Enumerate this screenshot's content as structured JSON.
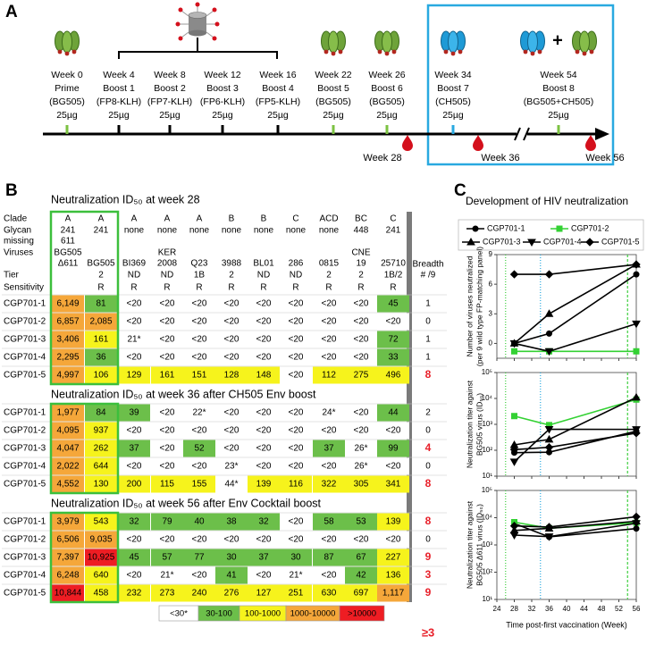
{
  "panel_a": {
    "label": "A",
    "schedule": [
      {
        "week": "Week 0",
        "name": "Prime",
        "immunogen": "(BG505)",
        "dose": "25µg",
        "color": "#7cc242"
      },
      {
        "week": "Week 4",
        "name": "Boost 1",
        "immunogen": "(FP8-KLH)",
        "dose": "25µg",
        "color": "#000000"
      },
      {
        "week": "Week 8",
        "name": "Boost 2",
        "immunogen": "(FP7-KLH)",
        "dose": "25µg",
        "color": "#000000"
      },
      {
        "week": "Week 12",
        "name": "Boost 3",
        "immunogen": "(FP6-KLH)",
        "dose": "25µg",
        "color": "#000000"
      },
      {
        "week": "Week 16",
        "name": "Boost 4",
        "immunogen": "(FP5-KLH)",
        "dose": "25µg",
        "color": "#000000"
      },
      {
        "week": "Week 22",
        "name": "Boost 5",
        "immunogen": "(BG505)",
        "dose": "25µg",
        "color": "#7cc242"
      },
      {
        "week": "Week 26",
        "name": "Boost 6",
        "immunogen": "(BG505)",
        "dose": "25µg",
        "color": "#7cc242"
      },
      {
        "week": "Week 34",
        "name": "Boost 7",
        "immunogen": "(CH505)",
        "dose": "25µg",
        "color": "#29a9e0"
      },
      {
        "week": "Week 54",
        "name": "Boost 8",
        "immunogen": "(BG505+CH505)",
        "dose": "25µg",
        "color": "#7cc242"
      }
    ],
    "bleeds": [
      "Week 28",
      "Week 36",
      "Week 56"
    ],
    "combo_sign": "+"
  },
  "panel_b": {
    "label": "B",
    "row_labels": [
      [
        "Clade"
      ],
      [
        "Glycan",
        "missing"
      ],
      [
        "Viruses"
      ],
      [
        "Tier"
      ],
      [
        "Sensitivity"
      ]
    ],
    "breadth_header": [
      "Breadth",
      "# /9"
    ],
    "columns": [
      {
        "clade": "A",
        "glycan": [
          "241",
          "611"
        ],
        "virus": [
          "BG505",
          "Δ611"
        ],
        "tier": null,
        "sensitivity": null
      },
      {
        "clade": "A",
        "glycan": [
          "241"
        ],
        "virus": [
          "BG505"
        ],
        "tier": "2",
        "sensitivity": "R"
      },
      {
        "clade": "A",
        "glycan": [
          "none"
        ],
        "virus": [
          "BI369"
        ],
        "tier": "ND",
        "sensitivity": "R"
      },
      {
        "clade": "A",
        "glycan": [
          "none"
        ],
        "virus": [
          "KER",
          "2008"
        ],
        "tier": "ND",
        "sensitivity": "R"
      },
      {
        "clade": "A",
        "glycan": [
          "none"
        ],
        "virus": [
          "Q23"
        ],
        "tier": "1B",
        "sensitivity": "R"
      },
      {
        "clade": "B",
        "glycan": [
          "none"
        ],
        "virus": [
          "3988"
        ],
        "tier": "2",
        "sensitivity": "R"
      },
      {
        "clade": "B",
        "glycan": [
          "none"
        ],
        "virus": [
          "BL01"
        ],
        "tier": "ND",
        "sensitivity": "R"
      },
      {
        "clade": "C",
        "glycan": [
          "none"
        ],
        "virus": [
          "286"
        ],
        "tier": "ND",
        "sensitivity": "R"
      },
      {
        "clade": "ACD",
        "glycan": [
          "none"
        ],
        "virus": [
          "0815"
        ],
        "tier": "2",
        "sensitivity": "R"
      },
      {
        "clade": "BC",
        "glycan": [
          "448"
        ],
        "virus": [
          "CNE",
          "19"
        ],
        "tier": "2",
        "sensitivity": "R"
      },
      {
        "clade": "C",
        "glycan": [
          "241"
        ],
        "virus": [
          "25710"
        ],
        "tier": "1B/2",
        "sensitivity": "R"
      }
    ],
    "tables": [
      {
        "title": "Neutralization ID₅₀ at week 28",
        "rows": [
          {
            "name": "CGP701-1",
            "cells": [
              "6,149",
              "81",
              "<20",
              "<20",
              "<20",
              "<20",
              "<20",
              "<20",
              "<20",
              "<20",
              "45"
            ],
            "breadth": 1
          },
          {
            "name": "CGP701-2",
            "cells": [
              "6,857",
              "2,085",
              "<20",
              "<20",
              "<20",
              "<20",
              "<20",
              "<20",
              "<20",
              "<20",
              "<20"
            ],
            "breadth": 0
          },
          {
            "name": "CGP701-3",
            "cells": [
              "3,406",
              "161",
              "21*",
              "<20",
              "<20",
              "<20",
              "<20",
              "<20",
              "<20",
              "<20",
              "72"
            ],
            "breadth": 1
          },
          {
            "name": "CGP701-4",
            "cells": [
              "2,295",
              "36",
              "<20",
              "<20",
              "<20",
              "<20",
              "<20",
              "<20",
              "<20",
              "<20",
              "33"
            ],
            "breadth": 1
          },
          {
            "name": "CGP701-5",
            "cells": [
              "4,997",
              "106",
              "129",
              "161",
              "151",
              "128",
              "148",
              "<20",
              "112",
              "275",
              "496"
            ],
            "breadth": 8
          }
        ]
      },
      {
        "title": "Neutralization ID₅₀ at week 36 after CH505 Env boost",
        "rows": [
          {
            "name": "CGP701-1",
            "cells": [
              "1,977",
              "84",
              "39",
              "<20",
              "22*",
              "<20",
              "<20",
              "<20",
              "24*",
              "<20",
              "44"
            ],
            "breadth": 2
          },
          {
            "name": "CGP701-2",
            "cells": [
              "4,095",
              "937",
              "<20",
              "<20",
              "<20",
              "<20",
              "<20",
              "<20",
              "<20",
              "<20",
              "<20"
            ],
            "breadth": 0
          },
          {
            "name": "CGP701-3",
            "cells": [
              "4,047",
              "262",
              "37",
              "<20",
              "52",
              "<20",
              "<20",
              "<20",
              "37",
              "26*",
              "99"
            ],
            "breadth": 4
          },
          {
            "name": "CGP701-4",
            "cells": [
              "2,022",
              "644",
              "<20",
              "<20",
              "<20",
              "23*",
              "<20",
              "<20",
              "<20",
              "26*",
              "<20"
            ],
            "breadth": 0
          },
          {
            "name": "CGP701-5",
            "cells": [
              "4,552",
              "130",
              "200",
              "115",
              "155",
              "44*",
              "139",
              "116",
              "322",
              "305",
              "341"
            ],
            "breadth": 8
          }
        ]
      },
      {
        "title": "Neutralization ID₅₀ at week 56 after Env Cocktail boost",
        "rows": [
          {
            "name": "CGP701-1",
            "cells": [
              "3,979",
              "543",
              "32",
              "79",
              "40",
              "38",
              "32",
              "<20",
              "58",
              "53",
              "139"
            ],
            "breadth": 8
          },
          {
            "name": "CGP701-2",
            "cells": [
              "6,506",
              "9,035",
              "<20",
              "<20",
              "<20",
              "<20",
              "<20",
              "<20",
              "<20",
              "<20",
              "<20"
            ],
            "breadth": 0
          },
          {
            "name": "CGP701-3",
            "cells": [
              "7,397",
              "10,925",
              "45",
              "57",
              "77",
              "30",
              "37",
              "30",
              "87",
              "67",
              "227"
            ],
            "breadth": 9
          },
          {
            "name": "CGP701-4",
            "cells": [
              "6,248",
              "640",
              "<20",
              "21*",
              "<20",
              "41",
              "<20",
              "21*",
              "<20",
              "42",
              "136"
            ],
            "breadth": 3
          },
          {
            "name": "CGP701-5",
            "cells": [
              "10,844",
              "458",
              "232",
              "273",
              "240",
              "276",
              "127",
              "251",
              "630",
              "697",
              "1,117"
            ],
            "breadth": 9
          }
        ]
      }
    ],
    "color_legend": [
      {
        "label": "<30*",
        "color": "#ffffff"
      },
      {
        "label": "30-100",
        "color": "#6cbf4a"
      },
      {
        "label": "100-1000",
        "color": "#f6f31c"
      },
      {
        "label": "1000-10000",
        "color": "#f5a73a"
      },
      {
        "label": ">10000",
        "color": "#ee1d23"
      }
    ],
    "breadth_highlight": "≥3",
    "highlight_color": "#e8202a"
  },
  "panel_c": {
    "label": "C",
    "title": "Development of HIV neutralization"
  },
  "chart_data": [
    {
      "type": "line",
      "ylabel": [
        "Number of viruses neutralized",
        "(per 9 wild type FP-matching panel)"
      ],
      "x": [
        28,
        36,
        56
      ],
      "xlim": [
        24,
        56
      ],
      "xticks": [
        24,
        28,
        32,
        36,
        40,
        44,
        48,
        52,
        56
      ],
      "ylim": [
        -1.5,
        9
      ],
      "yticks": [
        0,
        3,
        6,
        9
      ],
      "vlines": [
        {
          "x": 26,
          "color": "#3fcf3f",
          "dash": "1,2"
        },
        {
          "x": 34,
          "color": "#29a9e0",
          "dash": "1,2"
        },
        {
          "x": 54,
          "color": "#3fcf3f",
          "dash": "3,2"
        }
      ],
      "series": [
        {
          "name": "CGP701-1",
          "color": "#000000",
          "marker": "circle",
          "values": [
            0,
            1,
            7
          ]
        },
        {
          "name": "CGP701-2",
          "color": "#33d133",
          "marker": "square",
          "values": [
            -0.8,
            -0.8,
            -0.8
          ]
        },
        {
          "name": "CGP701-3",
          "color": "#000000",
          "marker": "triangle",
          "values": [
            0,
            3,
            8
          ]
        },
        {
          "name": "CGP701-4",
          "color": "#000000",
          "marker": "triangle-down",
          "values": [
            0,
            -0.8,
            2
          ]
        },
        {
          "name": "CGP701-5",
          "color": "#000000",
          "marker": "diamond",
          "values": [
            7,
            7,
            8
          ]
        }
      ]
    },
    {
      "type": "line",
      "ylabel": [
        "Neutralization titer against",
        "BG505 virus (ID₅₀)"
      ],
      "log_scale": true,
      "x": [
        28,
        36,
        56
      ],
      "xlim": [
        24,
        56
      ],
      "xticks": [
        24,
        28,
        32,
        36,
        40,
        44,
        48,
        52,
        56
      ],
      "ylim": [
        10,
        100000
      ],
      "yticks": [
        {
          "value": 10,
          "label": "10¹"
        },
        {
          "value": 100,
          "label": "10²"
        },
        {
          "value": 1000,
          "label": "10³"
        },
        {
          "value": 10000,
          "label": "10⁴"
        },
        {
          "value": 100000,
          "label": "10⁵"
        }
      ],
      "vlines": [
        {
          "x": 26,
          "color": "#3fcf3f",
          "dash": "1,2"
        },
        {
          "x": 34,
          "color": "#29a9e0",
          "dash": "1,2"
        },
        {
          "x": 54,
          "color": "#3fcf3f",
          "dash": "3,2"
        }
      ],
      "series": [
        {
          "values": [
            81,
            84,
            543
          ]
        },
        {
          "values": [
            2085,
            937,
            9035
          ]
        },
        {
          "values": [
            161,
            262,
            10925
          ]
        },
        {
          "values": [
            36,
            644,
            640
          ]
        },
        {
          "values": [
            106,
            130,
            458
          ]
        }
      ]
    },
    {
      "type": "line",
      "ylabel": [
        "Neutralization titer against",
        "BG505 Δ611 virus (ID₅₀)"
      ],
      "log_scale": true,
      "xlabel": "Time post-first vaccination (Week)",
      "x": [
        28,
        36,
        56
      ],
      "xlim": [
        24,
        56
      ],
      "xticks": [
        24,
        28,
        32,
        36,
        40,
        44,
        48,
        52,
        56
      ],
      "ylim": [
        10,
        100000
      ],
      "yticks": [
        {
          "value": 10,
          "label": "10¹"
        },
        {
          "value": 100,
          "label": "10²"
        },
        {
          "value": 1000,
          "label": "10³"
        },
        {
          "value": 10000,
          "label": "10⁴"
        },
        {
          "value": 100000,
          "label": "10⁵"
        }
      ],
      "vlines": [
        {
          "x": 26,
          "color": "#3fcf3f",
          "dash": "1,2"
        },
        {
          "x": 34,
          "color": "#29a9e0",
          "dash": "1,2"
        },
        {
          "x": 54,
          "color": "#3fcf3f",
          "dash": "3,2"
        }
      ],
      "series": [
        {
          "values": [
            6149,
            1977,
            3979
          ]
        },
        {
          "values": [
            6857,
            4095,
            6506
          ]
        },
        {
          "values": [
            3406,
            4047,
            7397
          ]
        },
        {
          "values": [
            2295,
            2022,
            6248
          ]
        },
        {
          "values": [
            4997,
            4552,
            10844
          ]
        }
      ]
    }
  ]
}
